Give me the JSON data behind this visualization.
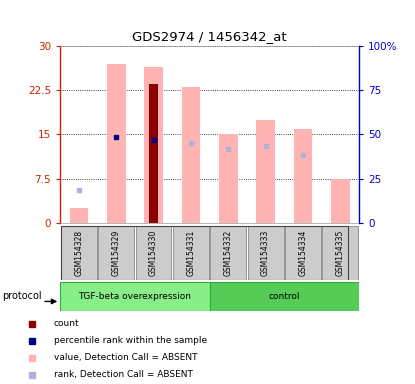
{
  "title": "GDS2974 / 1456342_at",
  "samples": [
    "GSM154328",
    "GSM154329",
    "GSM154330",
    "GSM154331",
    "GSM154332",
    "GSM154333",
    "GSM154334",
    "GSM154335"
  ],
  "pink_bar_heights": [
    2.5,
    27.0,
    26.5,
    23.0,
    15.0,
    17.5,
    16.0,
    7.5
  ],
  "red_bar_heights": [
    0,
    0,
    23.5,
    0,
    0,
    0,
    0,
    0
  ],
  "blue_marker_y": [
    -1,
    14.5,
    14.0,
    -1,
    -1,
    -1,
    -1,
    -1
  ],
  "light_blue_marker_y": [
    5.5,
    -1,
    -1,
    13.5,
    12.5,
    13.0,
    11.5,
    -1
  ],
  "ylim_left": [
    0,
    30
  ],
  "ylim_right": [
    0,
    100
  ],
  "yticks_left": [
    0,
    7.5,
    15,
    22.5,
    30
  ],
  "yticks_right": [
    0,
    25,
    50,
    75,
    100
  ],
  "ytick_labels_left": [
    "0",
    "7.5",
    "15",
    "22.5",
    "30"
  ],
  "ytick_labels_right": [
    "0",
    "25",
    "50",
    "75",
    "100%"
  ],
  "pink_color": "#ffb3b3",
  "red_color": "#8b0000",
  "blue_color": "#00008b",
  "light_blue_color": "#b0b0d8",
  "left_ytick_color": "#cc2200",
  "right_ytick_color": "#0000cc",
  "tgf_color": "#88ee88",
  "ctrl_color": "#55cc55",
  "group_border": "#33aa33"
}
